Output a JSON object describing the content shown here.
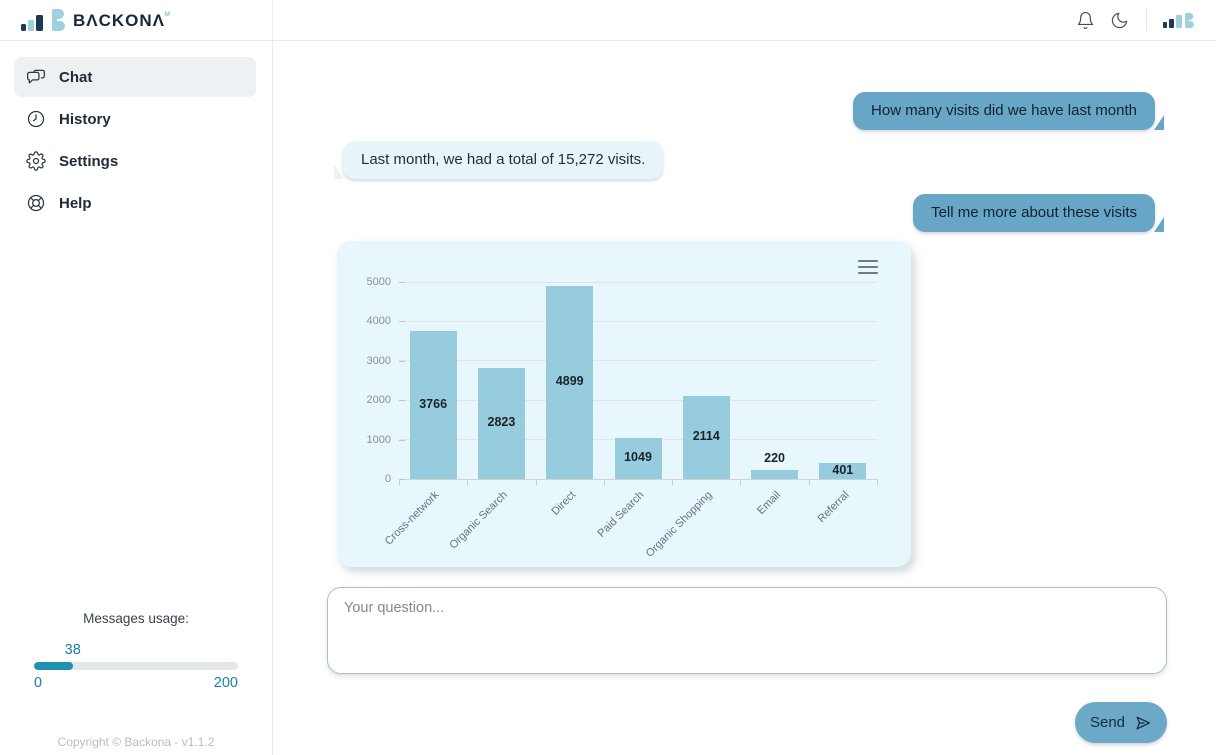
{
  "header": {
    "brand": "BΛCKONΛ",
    "brand_sup": "ᴹ",
    "icons": [
      "bell-icon",
      "moon-icon",
      "brand-bars-icon"
    ]
  },
  "sidebar": {
    "items": [
      {
        "label": "Chat",
        "icon": "chat-bubbles-icon",
        "active": true
      },
      {
        "label": "History",
        "icon": "clock-icon",
        "active": false
      },
      {
        "label": "Settings",
        "icon": "gear-icon",
        "active": false
      },
      {
        "label": "Help",
        "icon": "lifebuoy-icon",
        "active": false
      }
    ],
    "usage": {
      "label": "Messages usage:",
      "value": 38,
      "min": 0,
      "max": 200
    },
    "footer": "Copyright © Backona - v1.1.2"
  },
  "chat": {
    "messages": [
      {
        "role": "user",
        "text": "How many visits did we have last month"
      },
      {
        "role": "assistant",
        "text": "Last month, we had a total of 15,272 visits."
      },
      {
        "role": "user",
        "text": "Tell me more about these visits"
      }
    ],
    "input_placeholder": "Your question...",
    "send_label": "Send",
    "send_icon": "send-plane-icon"
  },
  "chart_data": {
    "type": "bar",
    "title": "",
    "xlabel": "",
    "ylabel": "",
    "categories": [
      "Cross-network",
      "Organic Search",
      "Direct",
      "Paid Search",
      "Organic Shopping",
      "Email",
      "Referral"
    ],
    "values": [
      3766,
      2823,
      4899,
      1049,
      2114,
      220,
      401
    ],
    "ylim": [
      0,
      5000
    ],
    "yticks": [
      0,
      1000,
      2000,
      3000,
      4000,
      5000
    ],
    "grid": true,
    "legend": false,
    "menu_icon": "hamburger-menu-icon"
  },
  "colors": {
    "user_bubble": "#67a6c7",
    "assistant_bubble": "#e7f5fa",
    "chart_card_bg": "#e7f7fc",
    "bar_fill": "#96ccdd",
    "send_button": "#6ca8c8",
    "progress_fill": "#2191b1",
    "progress_text": "#1a7f9f",
    "brand_dark": "#1d3a52",
    "brand_light": "#9fd0df"
  }
}
